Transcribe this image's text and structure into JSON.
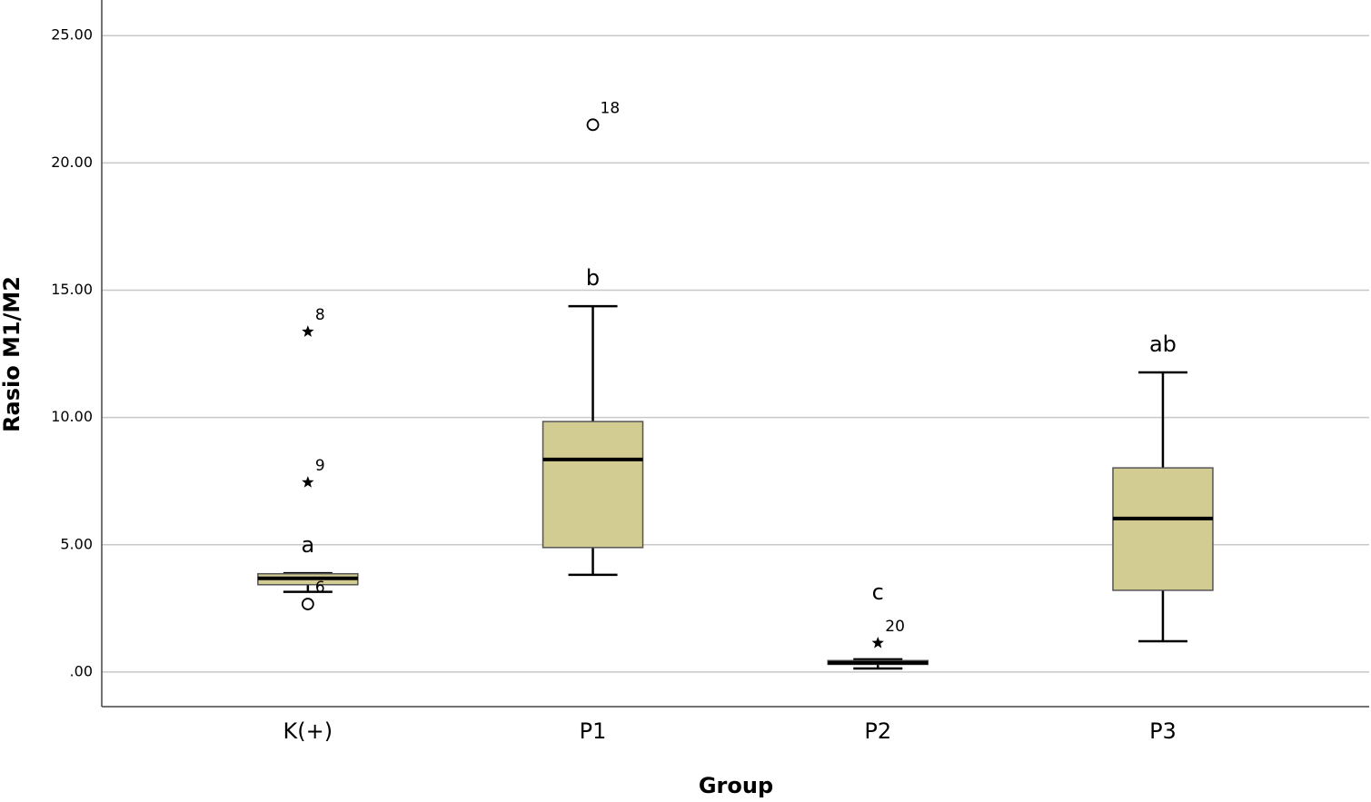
{
  "chart_data": {
    "type": "boxplot",
    "x_label": "Group",
    "y_label": "Rasio M1/M2",
    "categories": [
      "K(+)",
      "P1",
      "P2",
      "P3"
    ],
    "color": "#d2cc92",
    "ylim": [
      -1.36,
      26.4
    ],
    "yticks": [
      {
        "value": 0,
        "label": ".00"
      },
      {
        "value": 5,
        "label": "5.00"
      },
      {
        "value": 10,
        "label": "10.00"
      },
      {
        "value": 15,
        "label": "15.00"
      },
      {
        "value": 20,
        "label": "20.00"
      },
      {
        "value": 25,
        "label": "25.00"
      }
    ],
    "grid": true,
    "boxes": [
      {
        "whisker_low": 3.15,
        "q1": 3.43,
        "median": 3.68,
        "q3": 3.86,
        "whisker_high": 3.88,
        "letter": "a",
        "outliers": [
          {
            "value": 2.67,
            "label": "6",
            "symbol": "circle"
          },
          {
            "value": 13.37,
            "label": "8",
            "symbol": "star"
          },
          {
            "value": 7.45,
            "label": "9",
            "symbol": "star"
          }
        ]
      },
      {
        "whisker_low": 3.82,
        "q1": 4.89,
        "median": 8.35,
        "q3": 9.84,
        "whisker_high": 14.37,
        "letter": "b",
        "outliers": [
          {
            "value": 21.5,
            "label": "18",
            "symbol": "circle"
          }
        ]
      },
      {
        "whisker_low": 0.14,
        "q1": 0.3,
        "median": 0.36,
        "q3": 0.45,
        "whisker_high": 0.5,
        "letter": "c",
        "outliers": [
          {
            "value": 1.14,
            "label": "20",
            "symbol": "star"
          }
        ]
      },
      {
        "whisker_low": 1.21,
        "q1": 3.21,
        "median": 6.03,
        "q3": 8.02,
        "whisker_high": 11.77,
        "letter": "ab",
        "outliers": []
      }
    ]
  }
}
